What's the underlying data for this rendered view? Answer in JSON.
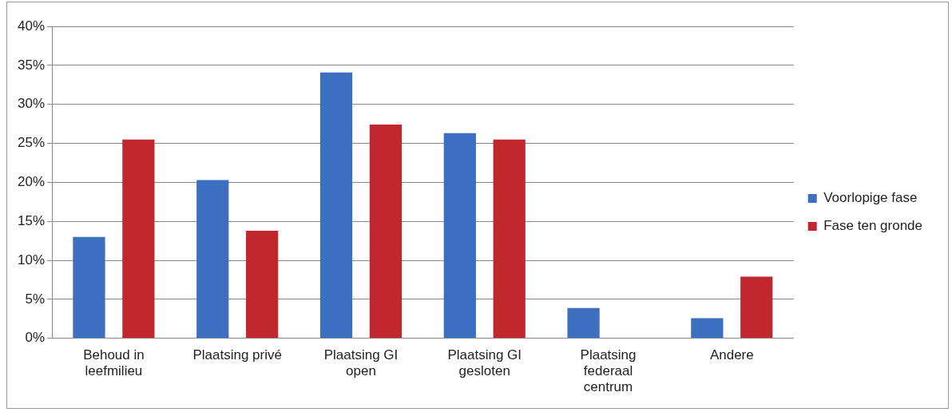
{
  "chart_data": {
    "type": "bar",
    "categories": [
      "Behoud in leefmilieu",
      "Plaatsing privé",
      "Plaatsing GI open",
      "Plaatsing GI gesloten",
      "Plaatsing federaal centrum",
      "Andere"
    ],
    "series": [
      {
        "name": "Voorlopige fase",
        "color": "#3c6fc0",
        "values": [
          13,
          20.3,
          34.1,
          26.3,
          3.9,
          2.6
        ]
      },
      {
        "name": "Fase ten gronde",
        "color": "#c0282e",
        "values": [
          25.5,
          13.8,
          27.4,
          25.5,
          0,
          7.9
        ]
      }
    ],
    "ylim": [
      0,
      40
    ],
    "yticks": [
      {
        "value": 0,
        "label": "0%"
      },
      {
        "value": 5,
        "label": "5%"
      },
      {
        "value": 10,
        "label": "10%"
      },
      {
        "value": 15,
        "label": "15%"
      },
      {
        "value": 20,
        "label": "20%"
      },
      {
        "value": 25,
        "label": "25%"
      },
      {
        "value": 30,
        "label": "30%"
      },
      {
        "value": 35,
        "label": "35%"
      },
      {
        "value": 40,
        "label": "40%"
      }
    ],
    "grid": "y",
    "legend": "right"
  }
}
